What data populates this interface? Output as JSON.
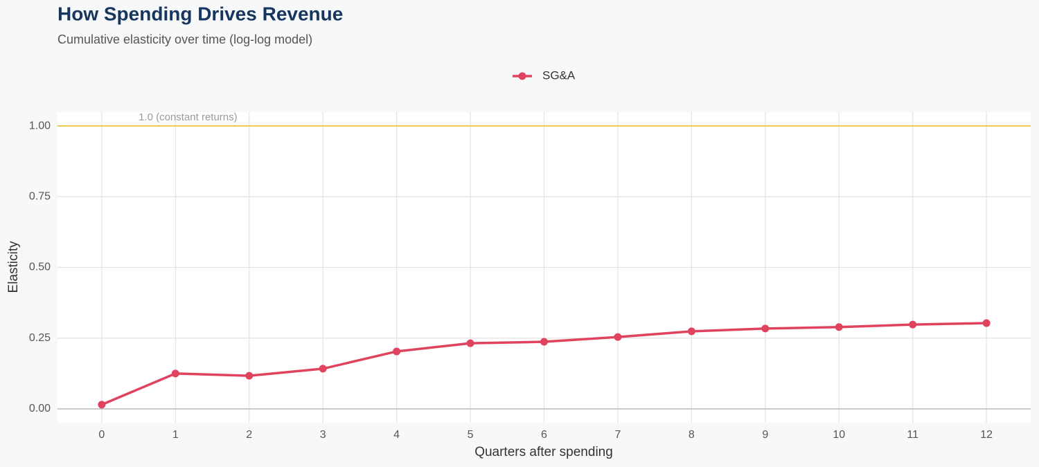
{
  "chart_data": {
    "type": "line",
    "title": "How Spending Drives Revenue",
    "subtitle": "Cumulative elasticity over time (log-log model)",
    "x_label": "Quarters after spending",
    "y_label": "Elasticity",
    "x": [
      0,
      1,
      2,
      3,
      4,
      5,
      6,
      7,
      8,
      9,
      10,
      11,
      12
    ],
    "series": [
      {
        "name": "SG&A",
        "color": "#e0435e",
        "values": [
          0.015,
          0.125,
          0.117,
          0.142,
          0.203,
          0.232,
          0.237,
          0.254,
          0.274,
          0.284,
          0.289,
          0.298,
          0.303
        ]
      }
    ],
    "xlim": [
      -0.6,
      12.6
    ],
    "xticks": [
      0,
      1,
      2,
      3,
      4,
      5,
      6,
      7,
      8,
      9,
      10,
      11,
      12
    ],
    "ylim": [
      -0.049,
      1.049
    ],
    "yticks": [
      {
        "value": 0,
        "label": "0.00"
      },
      {
        "value": 0.25,
        "label": "0.25"
      },
      {
        "value": 0.5,
        "label": "0.50"
      },
      {
        "value": 0.75,
        "label": "0.75"
      },
      {
        "value": 1,
        "label": "1.00"
      }
    ],
    "reference_line": {
      "value": 1,
      "label": "1.0 (constant returns)",
      "color": "#f2c94c"
    },
    "grid": true,
    "legend": "top"
  }
}
